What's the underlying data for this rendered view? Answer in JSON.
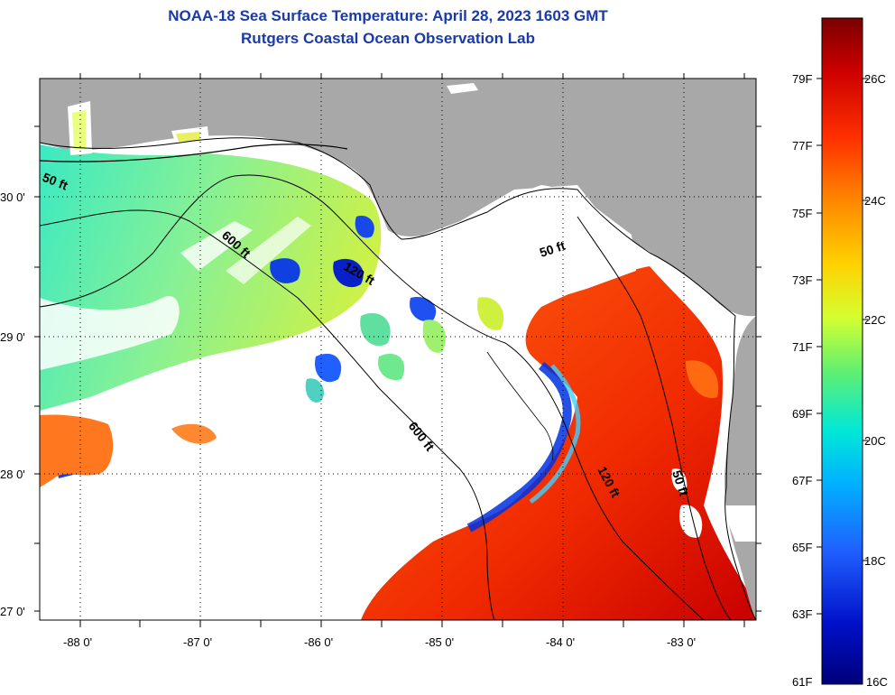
{
  "title_line1": "NOAA-18 Sea Surface Temperature:  April 28, 2023 1603 GMT",
  "title_line2": "Rutgers Coastal Ocean Observation Lab",
  "map": {
    "lat_labels": [
      "30 0'",
      "29 0'",
      "28 0'",
      "27 0'"
    ],
    "lon_labels": [
      "-88 0'",
      "-87 0'",
      "-86 0'",
      "-85 0'",
      "-84 0'",
      "-83 0'"
    ],
    "contour_labels": {
      "c50_west": "50 ft",
      "c600_north": "600 ft",
      "c120_north": "120 ft",
      "c50_east": "50 ft",
      "c600_south": "600 ft",
      "c120_south": "120 ft",
      "c50_south": "50 ft"
    }
  },
  "colorbar": {
    "fahrenheit": [
      "79F",
      "77F",
      "75F",
      "73F",
      "71F",
      "69F",
      "67F",
      "65F",
      "63F",
      "61F"
    ],
    "celsius": [
      "26C",
      "24C",
      "22C",
      "20C",
      "18C",
      "16C"
    ],
    "colors": [
      "#7a0000",
      "#cc0000",
      "#ff3000",
      "#ff8c00",
      "#ffd200",
      "#d4ff30",
      "#60f070",
      "#00e8d8",
      "#00b0ff",
      "#2060ff",
      "#0010c8",
      "#00007a"
    ]
  }
}
